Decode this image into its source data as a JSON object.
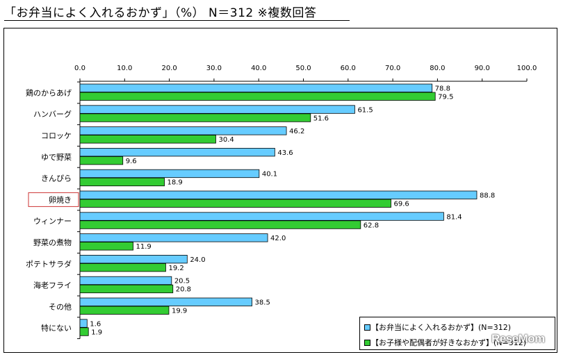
{
  "title": "「お弁当によく入れるおかず」（%）  N＝312   ※複数回答",
  "chart_data": {
    "type": "bar",
    "orientation": "horizontal",
    "title": "「お弁当によく入れるおかず」（%）  N＝312   ※複数回答",
    "categories": [
      "鶏のからあげ",
      "ハンバーグ",
      "コロッケ",
      "ゆで野菜",
      "きんぴら",
      "卵焼き",
      "ウィンナー",
      "野菜の煮物",
      "ポテトサラダ",
      "海老フライ",
      "その他",
      "特にない"
    ],
    "highlighted_category": "卵焼き",
    "xlim": [
      0,
      100
    ],
    "xticks": [
      "0.0",
      "10.0",
      "20.0",
      "30.0",
      "40.0",
      "50.0",
      "60.0",
      "70.0",
      "80.0",
      "90.0",
      "100.0"
    ],
    "series": [
      {
        "name": "【お弁当によく入れるおかず】(N=312)",
        "color": "#66ccff",
        "values": [
          78.8,
          61.5,
          46.2,
          43.6,
          40.1,
          88.8,
          81.4,
          42.0,
          24.0,
          20.5,
          38.5,
          1.6
        ],
        "labels": [
          "78.8",
          "61.5",
          "46.2",
          "43.6",
          "40.1",
          "88.8",
          "81.4",
          "42.0",
          "24.0",
          "20.5",
          "38.5",
          "1.6"
        ]
      },
      {
        "name": "【お子様や配偶者が好きなおかず】(N=312)",
        "color": "#33cc33",
        "values": [
          79.5,
          51.6,
          30.4,
          9.6,
          18.9,
          69.6,
          62.8,
          11.9,
          19.2,
          20.8,
          19.9,
          1.9
        ],
        "labels": [
          "79.5",
          "51.6",
          "30.4",
          "9.6",
          "18.9",
          "69.6",
          "62.8",
          "11.9",
          "19.2",
          "20.8",
          "19.9",
          "1.9"
        ]
      }
    ],
    "legend_position": "bottom-right"
  },
  "legend": {
    "item1": "【お弁当によく入れるおかず】(N=312)",
    "item2": "【お子様や配偶者が好きなおかず】(N=312)"
  },
  "watermark": "ReseMom"
}
